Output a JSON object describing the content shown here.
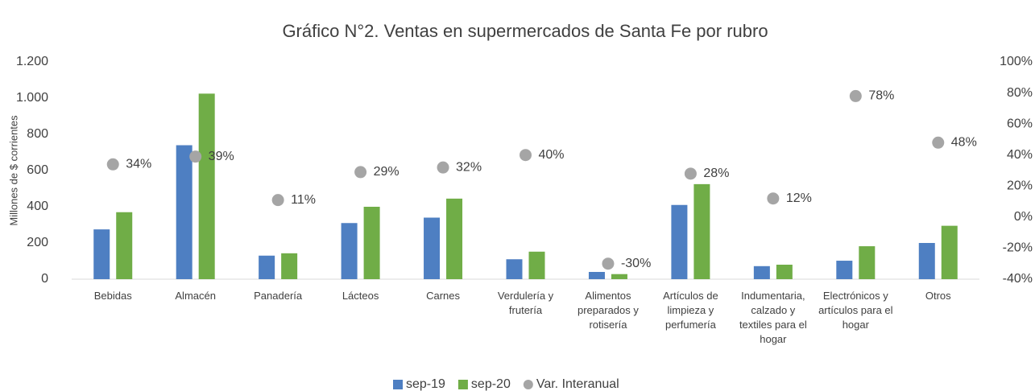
{
  "chart_data": {
    "type": "bar",
    "title": "Gráfico N°2. Ventas en supermercados de Santa Fe por rubro",
    "y_label": "Millones de $ corrientes",
    "categories": [
      "Bebidas",
      "Almacén",
      "Panadería",
      "Lácteos",
      "Carnes",
      "Verdulería y frutería",
      "Alimentos preparados y rotisería",
      "Artículos de limpieza y perfumería",
      "Indumentaria, calzado y textiles para el hogar",
      "Electrónicos y artículos para el hogar",
      "Otros"
    ],
    "series": [
      {
        "name": "sep-19",
        "color": "#4e7fc2",
        "values": [
          275,
          740,
          130,
          310,
          340,
          110,
          40,
          410,
          72,
          102,
          200
        ]
      },
      {
        "name": "sep-20",
        "color": "#70ad47",
        "values": [
          370,
          1025,
          143,
          400,
          445,
          152,
          28,
          525,
          80,
          182,
          295
        ]
      },
      {
        "name": "Var. Interanual",
        "type": "scatter",
        "axis": "y2",
        "color": "#a5a5a5",
        "values": [
          34,
          39,
          11,
          29,
          32,
          40,
          -30,
          28,
          12,
          78,
          48
        ],
        "value_labels": [
          "34%",
          "39%",
          "11%",
          "29%",
          "32%",
          "40%",
          "-30%",
          "28%",
          "12%",
          "78%",
          "48%"
        ]
      }
    ],
    "ylim": [
      0,
      1200
    ],
    "yticks": [
      0,
      200,
      400,
      600,
      800,
      {
        "value": 1000,
        "label": "1.000"
      },
      {
        "value": 1200,
        "label": "1.200"
      }
    ],
    "y2lim": [
      -40,
      100
    ],
    "y2ticks": [
      {
        "value": -40,
        "label": "-40%"
      },
      {
        "value": -20,
        "label": "-20%"
      },
      {
        "value": 0,
        "label": "0%"
      },
      {
        "value": 20,
        "label": "20%"
      },
      {
        "value": 40,
        "label": "40%"
      },
      {
        "value": 60,
        "label": "60%"
      },
      {
        "value": 80,
        "label": "80%"
      },
      {
        "value": 100,
        "label": "100%"
      }
    ],
    "legend": "bottom"
  }
}
